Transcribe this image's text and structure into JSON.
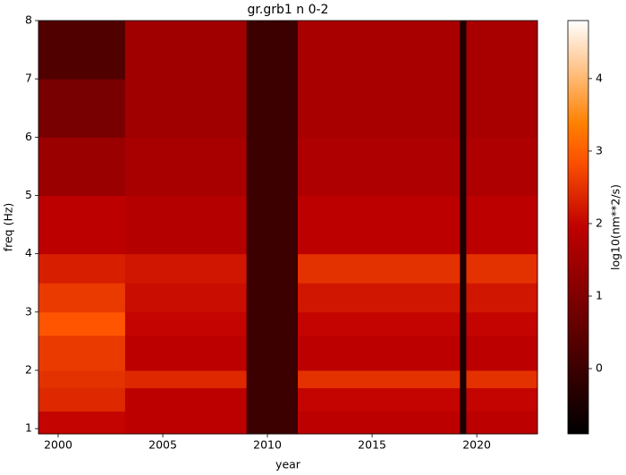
{
  "chart_data": {
    "type": "heatmap",
    "title": "gr.grb1 n 0-2",
    "x_label": "year",
    "y_label": "freq (Hz)",
    "colorbar_label": "log10(nm**2/s)",
    "colormap": "gist_heat",
    "x_edges": [
      1999.06,
      2003.2,
      2009.0,
      2011.45,
      2019.2,
      2019.5,
      2022.9
    ],
    "y_edges": [
      0.91,
      1.3,
      1.7,
      2.0,
      2.6,
      3.0,
      3.5,
      4.0,
      5.0,
      6.0,
      7.0,
      8.0
    ],
    "values": [
      [
        2.0,
        2.4,
        2.5,
        2.6,
        2.9,
        2.6,
        2.3,
        1.9,
        1.4,
        0.9,
        0.3
      ],
      [
        1.9,
        1.9,
        2.4,
        1.9,
        2.0,
        2.1,
        2.2,
        1.8,
        1.6,
        1.5,
        1.5
      ],
      [
        0,
        0,
        0,
        0,
        0,
        0,
        0,
        0,
        0,
        0,
        0
      ],
      [
        1.9,
        2.0,
        2.5,
        1.9,
        2.0,
        2.2,
        2.5,
        1.9,
        1.7,
        1.6,
        1.6
      ],
      [
        -0.5,
        -0.5,
        -0.5,
        -0.5,
        -0.5,
        -0.5,
        -0.5,
        -0.5,
        -0.5,
        -0.5,
        -0.5
      ],
      [
        1.9,
        2.0,
        2.5,
        1.9,
        2.0,
        2.2,
        2.5,
        1.9,
        1.7,
        1.6,
        1.6
      ]
    ],
    "xlim": [
      1999.06,
      2022.9
    ],
    "ylim": [
      0.91,
      8
    ],
    "xticks": [
      2000,
      2005,
      2010,
      2015,
      2020
    ],
    "yticks": [
      1,
      2,
      3,
      4,
      5,
      6,
      7,
      8
    ],
    "clim": [
      -0.9,
      4.8
    ],
    "cticks": [
      0,
      1,
      2,
      3,
      4
    ]
  }
}
